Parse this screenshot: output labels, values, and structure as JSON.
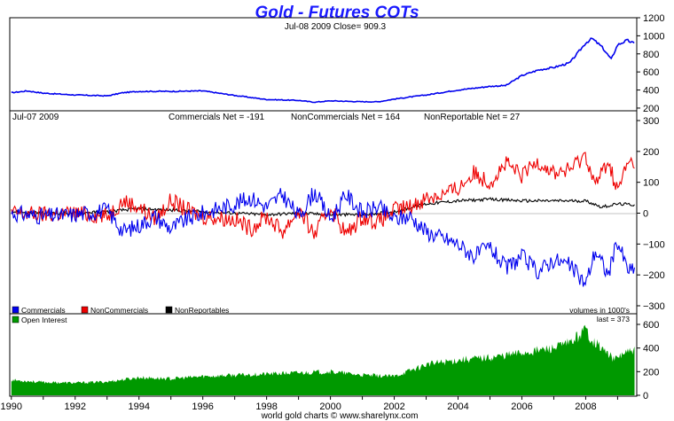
{
  "chart_data": {
    "type": "line",
    "title": "Gold - Futures COTs",
    "footer": "world gold charts © www.sharelynx.com",
    "x_ticks": [
      "1990",
      "1992",
      "1994",
      "1996",
      "1998",
      "2000",
      "2002",
      "2004",
      "2006",
      "2008"
    ],
    "x_range": [
      1989.95,
      2009.6
    ],
    "panels": [
      {
        "id": "price",
        "header": "Jul-08  2009   Close= 909.3",
        "y_ticks": [
          200,
          400,
          600,
          800,
          1000,
          1200
        ],
        "ylim": [
          200,
          1200
        ],
        "series": [
          {
            "color": "#0000ee",
            "x": [
              1990,
              1990.5,
              1991,
              1992,
              1993,
              1993.5,
              1994,
              1995,
              1996,
              1997,
              1998,
              1999,
              1999.5,
              2000,
              2001,
              2001.5,
              2002,
              2003,
              2004,
              2005,
              2005.5,
              2006,
              2006.5,
              2007,
              2007.5,
              2008,
              2008.2,
              2008.5,
              2008.8,
              2009,
              2009.3,
              2009.55
            ],
            "values": [
              370,
              390,
              365,
              345,
              335,
              370,
              385,
              385,
              390,
              340,
              295,
              285,
              265,
              280,
              270,
              270,
              300,
              345,
              400,
              440,
              450,
              560,
              620,
              650,
              700,
              920,
              970,
              880,
              740,
              900,
              950,
              909
            ]
          }
        ]
      },
      {
        "id": "cot",
        "header_left": "Jul-07  2009",
        "header_items": [
          "Commercials Net = -191",
          "NonCommercials Net = 164",
          "NonReportable Net = 27"
        ],
        "y_ticks": [
          -300,
          -200,
          -100,
          0,
          100,
          200,
          300
        ],
        "ylim": [
          -300,
          300
        ],
        "legend": [
          "Commercials",
          "NonCommercials",
          "NonReportables"
        ],
        "note": "volumes in 1000's",
        "series": [
          {
            "name": "Commercials",
            "color": "#0000ee",
            "x": [
              1990,
              1991,
              1992,
              1993,
              1993.5,
              1994,
              1994.5,
              1995,
              1995.5,
              1996,
              1997,
              1997.5,
              1998,
              1998.5,
              1999,
              1999.5,
              2000,
              2000.5,
              2001,
              2001.5,
              2002,
              2002.5,
              2003,
              2003.5,
              2004,
              2004.5,
              2005,
              2005.5,
              2006,
              2006.5,
              2007,
              2007.5,
              2008,
              2008.3,
              2008.7,
              2009,
              2009.3,
              2009.55
            ],
            "values": [
              0,
              -10,
              -5,
              10,
              -60,
              -40,
              -10,
              -50,
              -20,
              0,
              30,
              50,
              20,
              60,
              -10,
              70,
              -20,
              60,
              0,
              20,
              -20,
              -10,
              -60,
              -80,
              -100,
              -140,
              -110,
              -180,
              -140,
              -190,
              -150,
              -170,
              -230,
              -120,
              -200,
              -90,
              -180,
              -191
            ]
          },
          {
            "name": "NonCommercials",
            "color": "#ee0000",
            "x": [
              1990,
              1991,
              1992,
              1993,
              1993.5,
              1994,
              1994.5,
              1995,
              1995.5,
              1996,
              1997,
              1997.5,
              1998,
              1998.5,
              1999,
              1999.5,
              2000,
              2000.5,
              2001,
              2001.5,
              2002,
              2002.5,
              2003,
              2003.5,
              2004,
              2004.5,
              2005,
              2005.5,
              2006,
              2006.5,
              2007,
              2007.5,
              2008,
              2008.3,
              2008.7,
              2009,
              2009.3,
              2009.55
            ],
            "values": [
              0,
              -5,
              0,
              -10,
              40,
              20,
              -20,
              40,
              10,
              -10,
              -20,
              -50,
              -10,
              -60,
              10,
              -70,
              20,
              -70,
              -10,
              -30,
              10,
              20,
              50,
              60,
              80,
              130,
              100,
              160,
              120,
              170,
              130,
              140,
              190,
              90,
              170,
              70,
              160,
              164
            ]
          },
          {
            "name": "NonReportables",
            "color": "#000000",
            "x": [
              1990,
              1991,
              1992,
              1993,
              1994,
              1995,
              1996,
              1997,
              1998,
              1999,
              2000,
              2001,
              2002,
              2003,
              2004,
              2005,
              2006,
              2007,
              2008,
              2008.5,
              2009,
              2009.55
            ],
            "values": [
              5,
              0,
              0,
              5,
              15,
              10,
              5,
              0,
              -5,
              0,
              -5,
              -5,
              5,
              30,
              40,
              45,
              40,
              40,
              40,
              20,
              30,
              27
            ]
          }
        ]
      },
      {
        "id": "oi",
        "legend": [
          "Open Interest"
        ],
        "note": "last = 373",
        "y_ticks": [
          0,
          200,
          400,
          600
        ],
        "ylim": [
          0,
          650
        ],
        "series": [
          {
            "name": "Open Interest",
            "color": "#009900",
            "x": [
              1990,
              1991,
              1992,
              1993,
              1994,
              1995,
              1996,
              1997,
              1998,
              1999,
              2000,
              2001,
              2002,
              2003,
              2004,
              2005,
              2006,
              2007,
              2007.5,
              2008,
              2008.2,
              2008.5,
              2008.9,
              2009.2,
              2009.55
            ],
            "values": [
              130,
              110,
              105,
              115,
              150,
              140,
              160,
              170,
              180,
              190,
              200,
              170,
              160,
              260,
              300,
              320,
              360,
              400,
              440,
              560,
              470,
              400,
              300,
              360,
              373
            ]
          }
        ]
      }
    ]
  }
}
